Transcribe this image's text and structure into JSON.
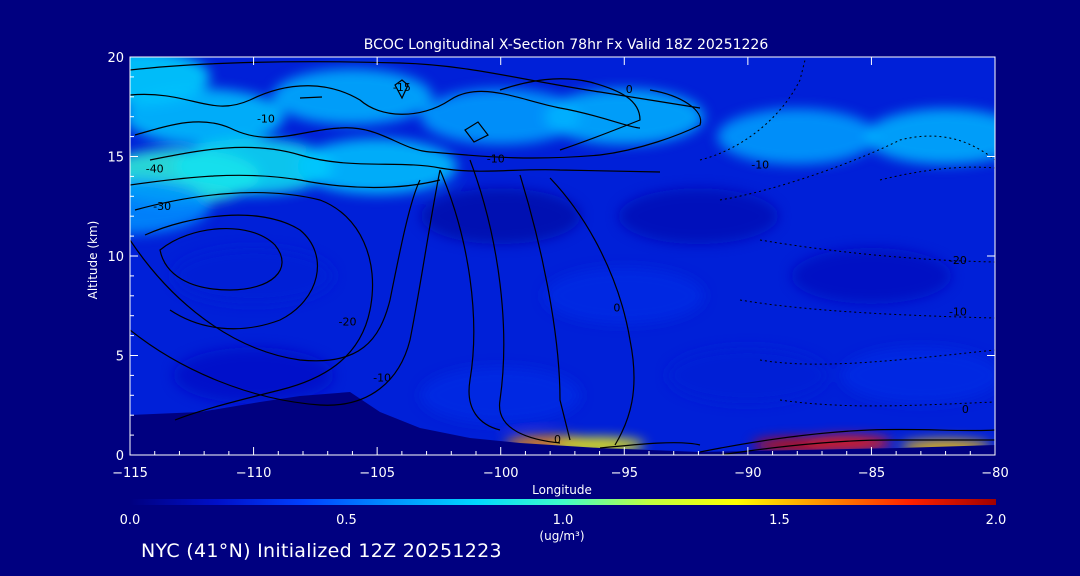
{
  "footer": {
    "text": "NYC (41°N) Initialized 12Z 20251223"
  },
  "chart_data": {
    "type": "heatmap",
    "title": "BCOC Longitudinal X-Section 78hr  Fx Valid 18Z 20251226",
    "xlabel": "Longitude",
    "ylabel": "Altitude (km)",
    "xlim": [
      -115,
      -80
    ],
    "ylim": [
      0,
      20
    ],
    "x_ticks": [
      -115,
      -110,
      -105,
      -100,
      -95,
      -90,
      -85,
      -80
    ],
    "x_tick_labels": [
      "−115",
      "−110",
      "−105",
      "−100",
      "−95",
      "−90",
      "−85",
      "−80"
    ],
    "y_ticks": [
      0,
      5,
      10,
      15,
      20
    ],
    "y_tick_labels": [
      "0",
      "5",
      "10",
      "15",
      "20"
    ],
    "colorbar": {
      "min": 0.0,
      "max": 2.0,
      "tick_values": [
        0.0,
        0.5,
        1.0,
        1.5,
        2.0
      ],
      "tick_labels": [
        "0.0",
        "0.5",
        "1.0",
        "1.5",
        "2.0"
      ],
      "label": "(ug/m³)",
      "colors": [
        "#000080",
        "#0010c8",
        "#0040ff",
        "#0090ff",
        "#00d8ff",
        "#40ffc8",
        "#c0ff40",
        "#ffff00",
        "#ff9000",
        "#ff2000",
        "#a00000"
      ]
    },
    "field_points": [
      {
        "lon": -115,
        "alt": 19,
        "value": 0.8
      },
      {
        "lon": -112,
        "alt": 17,
        "value": 0.75
      },
      {
        "lon": -106,
        "alt": 18,
        "value": 0.7
      },
      {
        "lon": -100,
        "alt": 17,
        "value": 0.65
      },
      {
        "lon": -95,
        "alt": 17,
        "value": 0.7
      },
      {
        "lon": -88,
        "alt": 16,
        "value": 0.65
      },
      {
        "lon": -82,
        "alt": 16,
        "value": 0.7
      },
      {
        "lon": -113,
        "alt": 14,
        "value": 0.95
      },
      {
        "lon": -110,
        "alt": 14.5,
        "value": 0.85
      },
      {
        "lon": -105,
        "alt": 14.5,
        "value": 0.75
      },
      {
        "lon": -115,
        "alt": 12.5,
        "value": 0.6
      },
      {
        "lon": -100,
        "alt": 12,
        "value": 0.12
      },
      {
        "lon": -92,
        "alt": 12,
        "value": 0.15
      },
      {
        "lon": -110,
        "alt": 9,
        "value": 0.25
      },
      {
        "lon": -95,
        "alt": 8,
        "value": 0.3
      },
      {
        "lon": -85,
        "alt": 9,
        "value": 0.18
      },
      {
        "lon": -110,
        "alt": 4,
        "value": 0.2
      },
      {
        "lon": -100,
        "alt": 3,
        "value": 0.3
      },
      {
        "lon": -90,
        "alt": 4,
        "value": 0.25
      },
      {
        "lon": -83,
        "alt": 4,
        "value": 0.3
      },
      {
        "lon": -98,
        "alt": 0.6,
        "value": 1.6
      },
      {
        "lon": -96,
        "alt": 0.5,
        "value": 1.4
      },
      {
        "lon": -88,
        "alt": 0.5,
        "value": 1.9
      },
      {
        "lon": -86,
        "alt": 0.6,
        "value": 1.8
      },
      {
        "lon": -82,
        "alt": 0.4,
        "value": 1.5
      }
    ],
    "contour_labels": [
      {
        "text": "0",
        "lon": -94.8,
        "alt": 18.2
      },
      {
        "text": "-15",
        "lon": -104,
        "alt": 18.3
      },
      {
        "text": "-10",
        "lon": -109.5,
        "alt": 16.7
      },
      {
        "text": "-10",
        "lon": -100.2,
        "alt": 14.7
      },
      {
        "text": "-10",
        "lon": -89.5,
        "alt": 14.4
      },
      {
        "text": "-40",
        "lon": -114,
        "alt": 14.2
      },
      {
        "text": "-30",
        "lon": -113.7,
        "alt": 12.3
      },
      {
        "text": "-20",
        "lon": -106.2,
        "alt": 6.5
      },
      {
        "text": "-10",
        "lon": -104.8,
        "alt": 3.7
      },
      {
        "text": "0",
        "lon": -95.3,
        "alt": 7.2
      },
      {
        "text": "-20",
        "lon": -81.5,
        "alt": 9.6
      },
      {
        "text": "-10",
        "lon": -81.5,
        "alt": 7.0
      },
      {
        "text": "0",
        "lon": -81.2,
        "alt": 2.1
      },
      {
        "text": "0",
        "lon": -97.7,
        "alt": 0.6
      }
    ]
  }
}
